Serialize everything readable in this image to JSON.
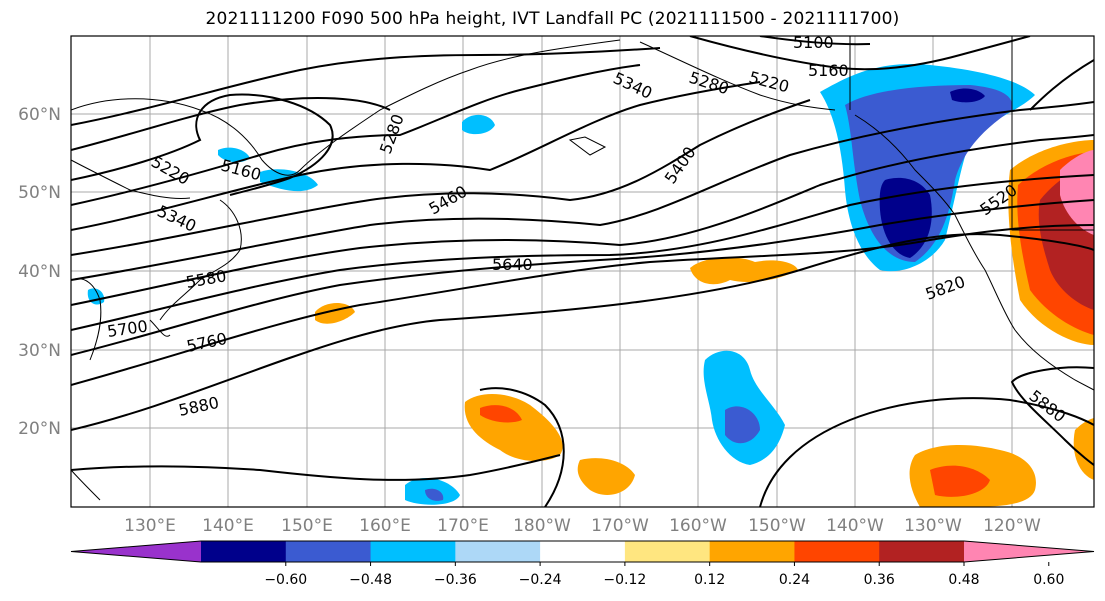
{
  "title": "2021111200 F090 500 hPa height, IVT Landfall PC (2021111500 - 2021111700)",
  "lat_labels": [
    "60°N",
    "50°N",
    "40°N",
    "30°N",
    "20°N"
  ],
  "lon_labels": [
    "130°E",
    "140°E",
    "150°E",
    "160°E",
    "170°E",
    "180°W",
    "170°W",
    "160°W",
    "150°W",
    "140°W",
    "130°W",
    "120°W"
  ],
  "contour_labels": [
    "5100",
    "5160",
    "5220",
    "5280",
    "5340",
    "5220",
    "5340",
    "5160",
    "5280",
    "5400",
    "5460",
    "5580",
    "5640",
    "5700",
    "5760",
    "5820",
    "5880",
    "5880",
    "5520"
  ],
  "colorbar": {
    "ticks": [
      "−0.60",
      "−0.48",
      "−0.36",
      "−0.24",
      "−0.12",
      "0.12",
      "0.24",
      "0.36",
      "0.48",
      "0.60"
    ],
    "colors": [
      "#9932CC",
      "#00008B",
      "#3B5BD1",
      "#00BFFF",
      "#ADD8F7",
      "#FFFFFF",
      "#FFE680",
      "#FFA500",
      "#FF4500",
      "#B22222",
      "#FF85B2"
    ]
  }
}
